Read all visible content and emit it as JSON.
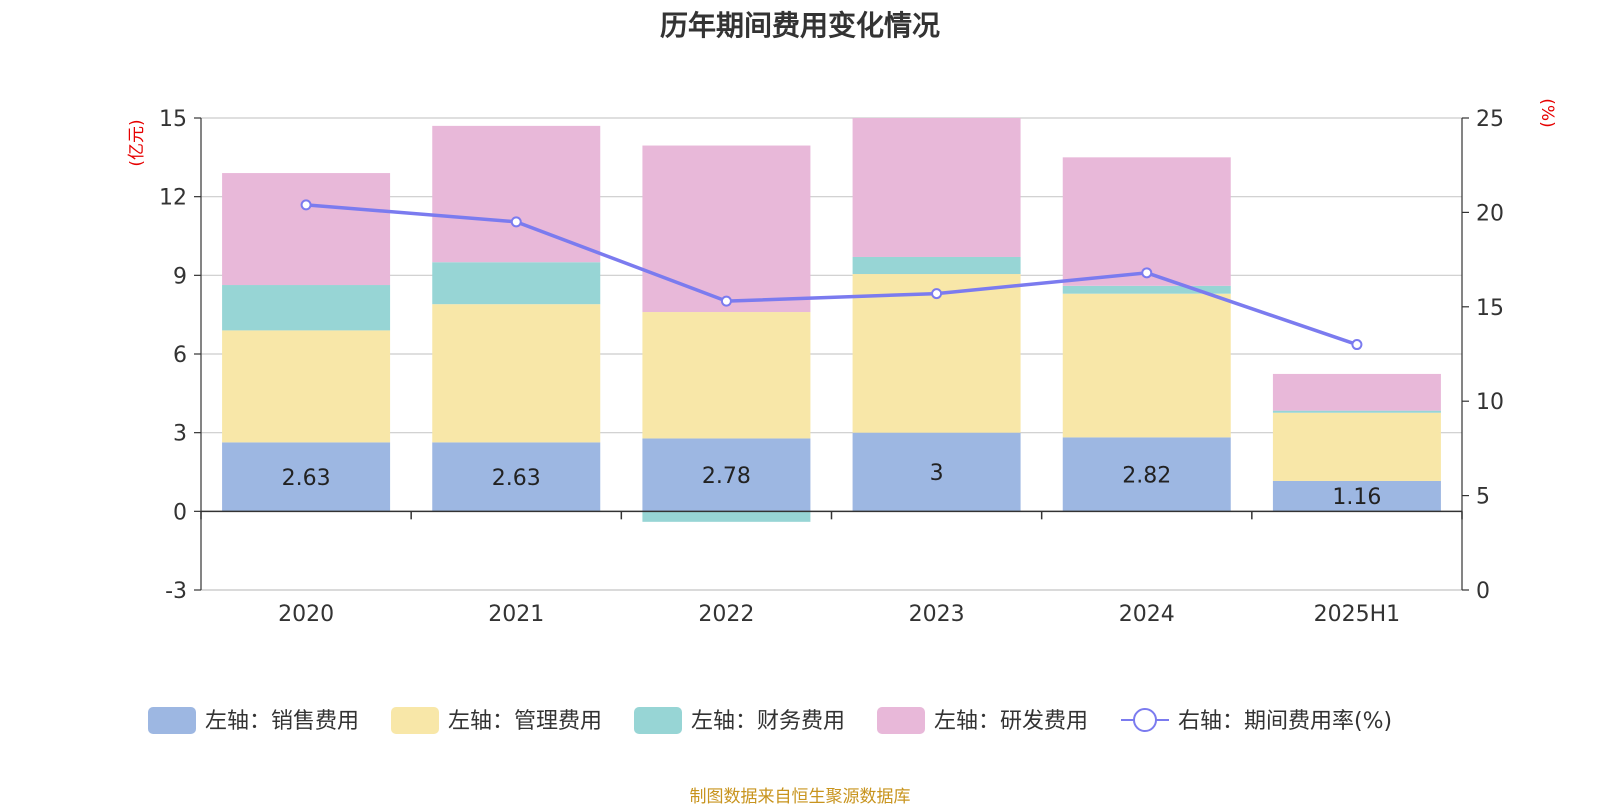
{
  "title": "历年期间费用变化情况",
  "source": "制图数据来自恒生聚源数据库",
  "chart_data": {
    "type": "bar",
    "stacked": true,
    "categories": [
      "2020",
      "2021",
      "2022",
      "2023",
      "2024",
      "2025H1"
    ],
    "left_axis": {
      "label": "(亿元)",
      "ylim": [
        -3,
        15
      ],
      "ticks": [
        -3,
        0,
        3,
        6,
        9,
        12,
        15
      ]
    },
    "right_axis": {
      "label": "(%)",
      "ylim": [
        0,
        25
      ],
      "ticks": [
        0,
        5,
        10,
        15,
        20,
        25
      ]
    },
    "grid": true,
    "legend_position": "bottom",
    "series": [
      {
        "name": "左轴：销售费用",
        "axis": "left",
        "type": "bar",
        "color": "#9db7e2",
        "values": [
          2.63,
          2.63,
          2.78,
          3,
          2.82,
          1.16
        ],
        "labels": [
          "2.63",
          "2.63",
          "2.78",
          "3",
          "2.82",
          "1.16"
        ]
      },
      {
        "name": "左轴：管理费用",
        "axis": "left",
        "type": "bar",
        "color": "#f8e7a8",
        "values": [
          4.27,
          5.27,
          4.82,
          6.05,
          5.48,
          2.6
        ]
      },
      {
        "name": "左轴：财务费用",
        "axis": "left",
        "type": "bar",
        "color": "#97d5d5",
        "values": [
          1.73,
          1.6,
          -0.4,
          0.65,
          0.3,
          0.08
        ]
      },
      {
        "name": "左轴：研发费用",
        "axis": "left",
        "type": "bar",
        "color": "#e8b8d9",
        "values": [
          4.27,
          5.2,
          6.35,
          5.3,
          4.9,
          1.4
        ]
      },
      {
        "name": "右轴：期间费用率(%)",
        "axis": "right",
        "type": "line",
        "color": "#7b7bef",
        "values": [
          20.4,
          19.5,
          15.3,
          15.7,
          16.8,
          13.0
        ]
      }
    ]
  }
}
